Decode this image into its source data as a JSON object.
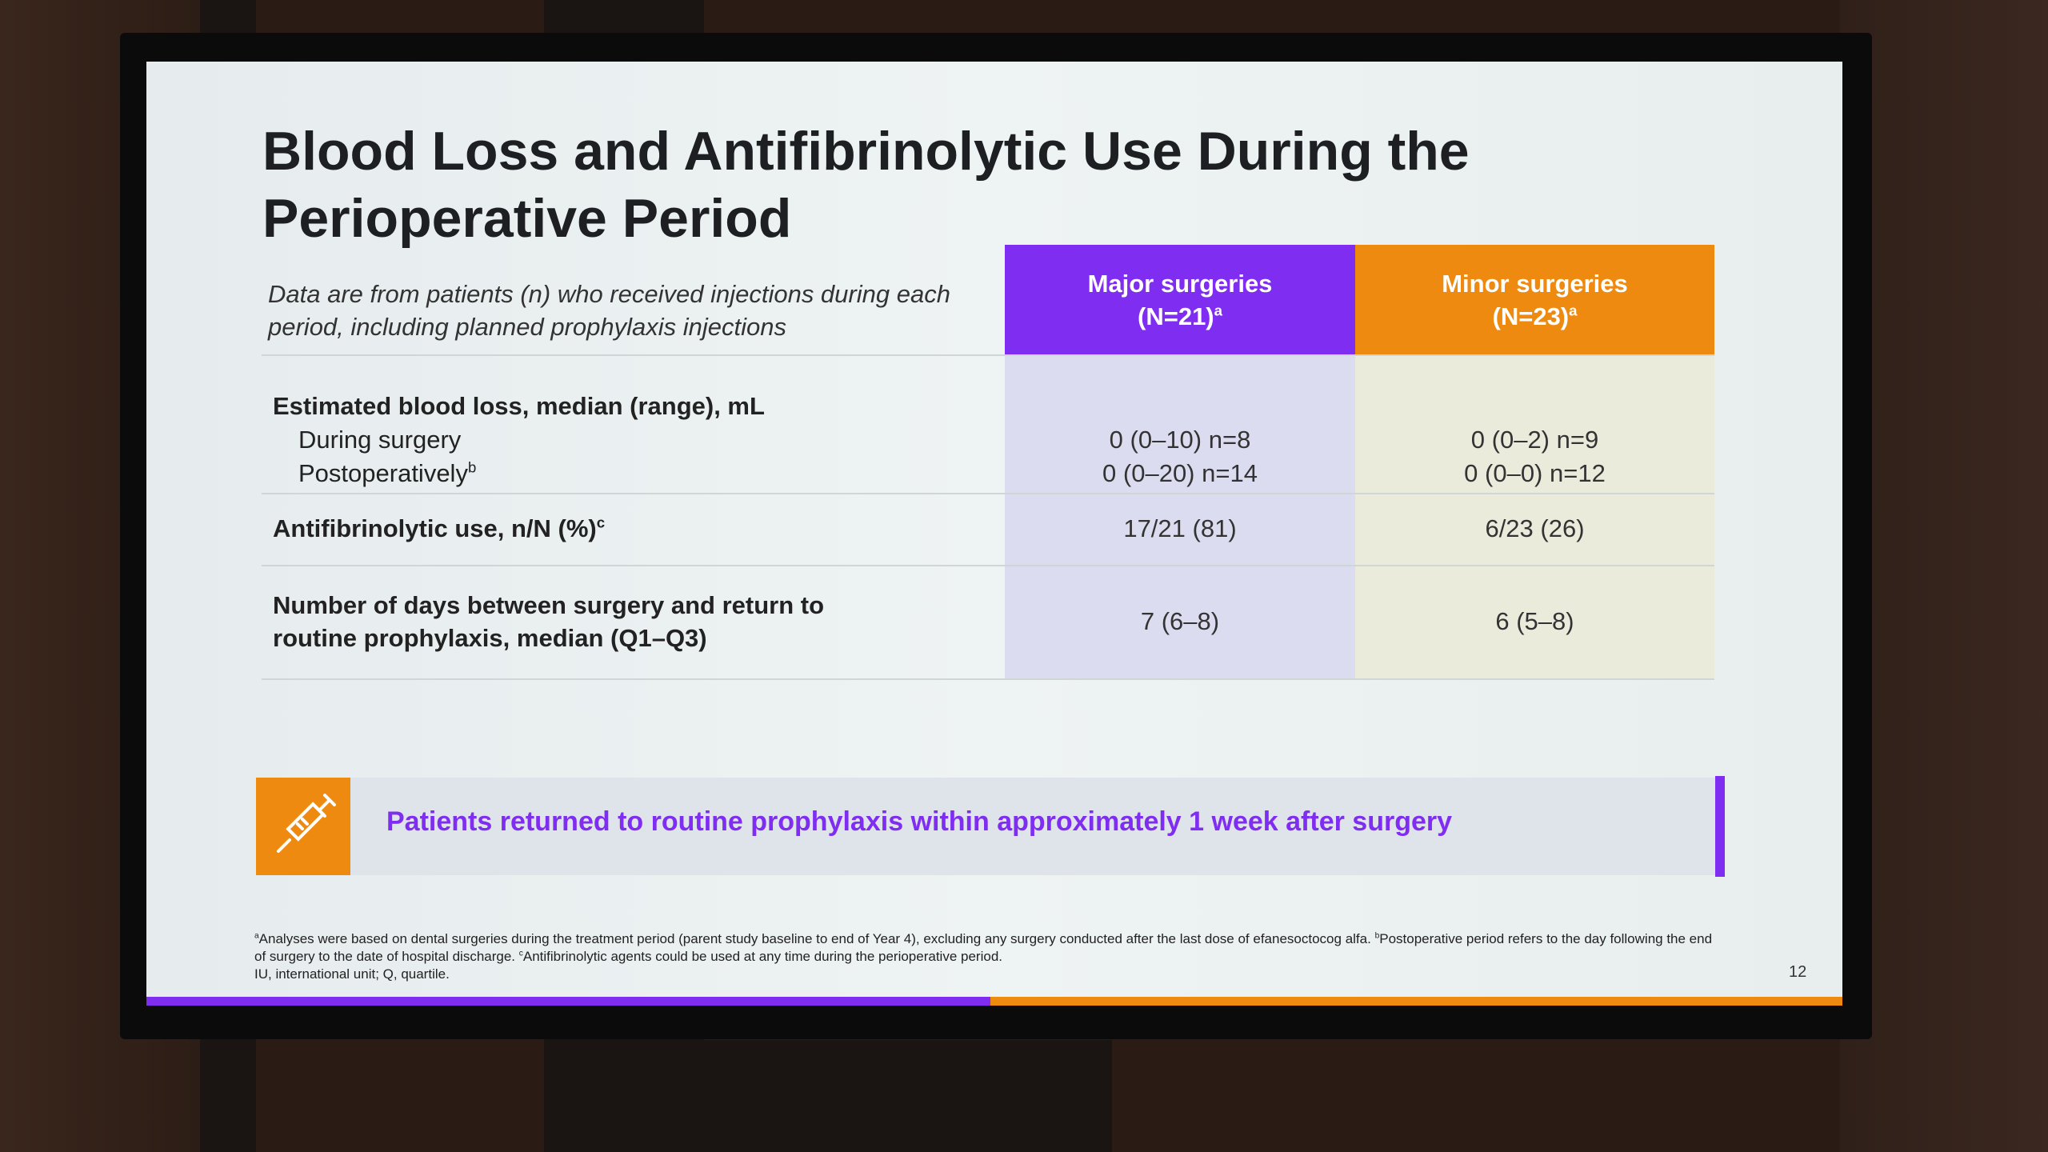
{
  "slide": {
    "title": "Blood Loss and Antifibrinolytic Use During the Perioperative Period",
    "table": {
      "caption": "Data are from patients (n) who received injections during each period, including planned prophylaxis injections",
      "columns": [
        {
          "label": "Major surgeries",
          "n": "(N=21)",
          "sup": "a"
        },
        {
          "label": "Minor surgeries",
          "n": "(N=23)",
          "sup": "a"
        }
      ],
      "rows": [
        {
          "label": "Estimated blood loss, median (range), mL",
          "sub": [
            {
              "label": "During surgery",
              "major": "0 (0–10) n=8",
              "minor": "0 (0–2) n=9"
            },
            {
              "label": "Postoperatively",
              "sup": "b",
              "major": "0 (0–20) n=14",
              "minor": "0 (0–0) n=12"
            }
          ]
        },
        {
          "label": "Antifibrinolytic use, n/N (%)",
          "sup": "c",
          "major": "17/21 (81)",
          "minor": "6/23 (26)"
        },
        {
          "label": "Number of days between surgery and return to routine prophylaxis, median (Q1–Q3)",
          "major": "7 (6–8)",
          "minor": "6 (5–8)"
        }
      ]
    },
    "callout": "Patients returned to routine prophylaxis within approximately 1 week after surgery",
    "footnotes": [
      {
        "marker": "a",
        "text": "Analyses were based on dental surgeries during the treatment period (parent study baseline to end of Year 4), excluding any surgery conducted after the last dose of efanesoctocog alfa."
      },
      {
        "marker": "b",
        "text": "Postoperative period refers to the day following the end of surgery to the date of hospital discharge."
      },
      {
        "marker": "c",
        "text": "Antifibrinolytic agents could be used at any time during the perioperative period."
      }
    ],
    "abbreviations": "IU, international unit; Q, quartile.",
    "page_number": "12"
  }
}
